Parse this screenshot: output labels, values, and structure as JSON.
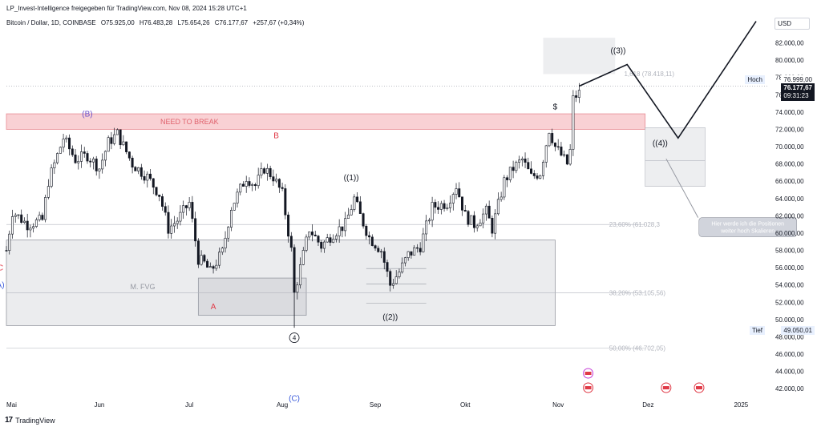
{
  "header": {
    "publisher_line": "LP_Invest-Intelligence freigegeben für TradingView.com, Nov 08, 2024 15:28 UTC+1",
    "symbol_line": "Bitcoin / Dollar, 1D, COINBASE",
    "ohlc": {
      "open": "O75.925,00",
      "high": "H76.483,28",
      "low": "L75.654,26",
      "close": "C76.177,67",
      "change": "+257,67 (+0,34%)"
    }
  },
  "currency": "USD",
  "footer": {
    "brand": "TradingView"
  },
  "price_labels": {
    "hoch_label": "Hoch",
    "hoch_value": "76.999,00",
    "current_value": "76.177,67",
    "countdown": "09:31:23",
    "tief_label": "Tief",
    "tief_value": "49.050,01"
  },
  "colors": {
    "up": "#131722",
    "down": "#131722",
    "resistance_zone": "#f7c5c9",
    "resistance_text": "#e0626d",
    "fvg_zone": "#e6e7ea",
    "wave_red": "#e03a47",
    "wave_blue": "#3b5bdb",
    "wave_purple": "#6a4fc9",
    "projection_line": "#131722",
    "fib_text": "#b2b5be"
  },
  "chart_data": {
    "type": "candlestick",
    "instrument": "Bitcoin / Dollar",
    "timeframe": "1D",
    "exchange": "COINBASE",
    "y_axis": {
      "range": [
        41000,
        84000
      ],
      "ticks": [
        82000,
        80000,
        78000,
        76000,
        74000,
        72000,
        70000,
        68000,
        66000,
        64000,
        62000,
        60000,
        58000,
        56000,
        54000,
        52000,
        50000,
        48000,
        46000,
        44000,
        42000
      ],
      "tick_labels": [
        "82.000,00",
        "80.000,00",
        "78.000,00",
        "76.000,00",
        "74.000,00",
        "72.000,00",
        "70.000,00",
        "68.000,00",
        "66.000,00",
        "64.000,00",
        "62.000,00",
        "60.000,00",
        "58.000,00",
        "56.000,00",
        "54.000,00",
        "52.000,00",
        "50.000,00",
        "48.000,00",
        "46.000,00",
        "44.000,00",
        "42.000,00"
      ]
    },
    "x_axis": {
      "start": "2024-05-01",
      "end": "2025-01-10",
      "ticks": [
        {
          "label": "Mai",
          "date": "2024-05-01"
        },
        {
          "label": "Jun",
          "date": "2024-06-01"
        },
        {
          "label": "Jul",
          "date": "2024-07-01"
        },
        {
          "label": "Aug",
          "date": "2024-08-01"
        },
        {
          "label": "Sep",
          "date": "2024-09-01"
        },
        {
          "label": "Okt",
          "date": "2024-10-01"
        },
        {
          "label": "Nov",
          "date": "2024-11-01"
        },
        {
          "label": "Dez",
          "date": "2024-12-01"
        },
        {
          "label": "2025",
          "date": "2025-01-01"
        }
      ]
    },
    "price_path": [
      [
        "2024-05-01",
        58000
      ],
      [
        "2024-05-03",
        62500
      ],
      [
        "2024-05-08",
        61000
      ],
      [
        "2024-05-13",
        61500
      ],
      [
        "2024-05-15",
        66000
      ],
      [
        "2024-05-20",
        71000
      ],
      [
        "2024-05-24",
        68500
      ],
      [
        "2024-05-28",
        69000
      ],
      [
        "2024-06-01",
        67500
      ],
      [
        "2024-06-04",
        70500
      ],
      [
        "2024-06-07",
        71500
      ],
      [
        "2024-06-12",
        68000
      ],
      [
        "2024-06-17",
        66500
      ],
      [
        "2024-06-21",
        64500
      ],
      [
        "2024-06-24",
        60500
      ],
      [
        "2024-06-27",
        61500
      ],
      [
        "2024-07-01",
        63500
      ],
      [
        "2024-07-04",
        57000
      ],
      [
        "2024-07-06",
        56500
      ],
      [
        "2024-07-08",
        55500
      ],
      [
        "2024-07-12",
        57800
      ],
      [
        "2024-07-15",
        63000
      ],
      [
        "2024-07-20",
        66500
      ],
      [
        "2024-07-23",
        65500
      ],
      [
        "2024-07-26",
        67500
      ],
      [
        "2024-07-29",
        66500
      ],
      [
        "2024-08-01",
        64500
      ],
      [
        "2024-08-04",
        58000
      ],
      [
        "2024-08-05",
        53000
      ],
      [
        "2024-08-07",
        56000
      ],
      [
        "2024-08-10",
        60500
      ],
      [
        "2024-08-14",
        58500
      ],
      [
        "2024-08-18",
        60000
      ],
      [
        "2024-08-22",
        61000
      ],
      [
        "2024-08-25",
        64000
      ],
      [
        "2024-08-27",
        62000
      ],
      [
        "2024-08-30",
        59500
      ],
      [
        "2024-09-03",
        58000
      ],
      [
        "2024-09-06",
        54000
      ],
      [
        "2024-09-09",
        55500
      ],
      [
        "2024-09-12",
        57500
      ],
      [
        "2024-09-16",
        58500
      ],
      [
        "2024-09-20",
        63000
      ],
      [
        "2024-09-25",
        63500
      ],
      [
        "2024-09-28",
        65500
      ],
      [
        "2024-10-01",
        62000
      ],
      [
        "2024-10-04",
        61000
      ],
      [
        "2024-10-08",
        62500
      ],
      [
        "2024-10-10",
        60500
      ],
      [
        "2024-10-14",
        66000
      ],
      [
        "2024-10-17",
        67500
      ],
      [
        "2024-10-20",
        68500
      ],
      [
        "2024-10-23",
        66500
      ],
      [
        "2024-10-26",
        67000
      ],
      [
        "2024-10-29",
        72000
      ],
      [
        "2024-10-31",
        70000
      ],
      [
        "2024-11-04",
        68000
      ],
      [
        "2024-11-05",
        69500
      ],
      [
        "2024-11-06",
        75500
      ],
      [
        "2024-11-07",
        75900
      ],
      [
        "2024-11-08",
        76177.67
      ]
    ],
    "zones": [
      {
        "label": "NEED TO BREAK",
        "from": "2024-05-01",
        "to": "2024-11-30",
        "low": 72000,
        "high": 73800
      },
      {
        "label": "M. FVG",
        "from": "2024-05-01",
        "to": "2024-10-31",
        "low": 49300,
        "high": 59200
      },
      {
        "label": "",
        "from": "2024-07-04",
        "to": "2024-08-09",
        "low": 50500,
        "high": 54800
      }
    ],
    "fibonacci": [
      {
        "label": "1,618 (78.418,11)",
        "value": 78418.11
      },
      {
        "label": "23,60% (61.028,3",
        "value": 61028.3
      },
      {
        "label": "38,20% (53.105,56)",
        "value": 53105.56
      },
      {
        "label": "50,00% (46.702,05)",
        "value": 46702.05
      }
    ],
    "wave_labels": [
      {
        "text": "(B)",
        "date": "2024-05-28",
        "price": 73500,
        "color": "#6a4fc9"
      },
      {
        "text": "B",
        "date": "2024-07-30",
        "price": 71000,
        "color": "#e03a47"
      },
      {
        "text": "C",
        "date": "2024-04-29",
        "price": 55700,
        "color": "#e03a47"
      },
      {
        "text": "A)",
        "date": "2024-04-29",
        "price": 53700,
        "color": "#3b5bdb"
      },
      {
        "text": "A",
        "date": "2024-07-09",
        "price": 51200,
        "color": "#e03a47"
      },
      {
        "text": "(C)",
        "date": "2024-08-05",
        "price": 40600,
        "color": "#3b5bdb"
      },
      {
        "text": "((1))",
        "date": "2024-08-24",
        "price": 66100,
        "color": "#131722"
      },
      {
        "text": "((2))",
        "date": "2024-09-06",
        "price": 50000,
        "color": "#131722"
      },
      {
        "text": "((3))",
        "date": "2024-11-21",
        "price": 80800,
        "color": "#131722"
      },
      {
        "text": "((4))",
        "date": "2024-12-05",
        "price": 70100,
        "color": "#131722"
      },
      {
        "text": "$",
        "date": "2024-10-31",
        "price": 74300,
        "color": "#131722"
      }
    ],
    "projection": [
      [
        "2024-11-08",
        77000
      ],
      [
        "2024-11-24",
        79500
      ],
      [
        "2024-12-11",
        71000
      ],
      [
        "2025-01-06",
        84500
      ]
    ],
    "annotations": [
      {
        "text": "Hier werde ich die Positionen weiter hoch Skalieren",
        "date": "2025-01-02",
        "price": 62000
      }
    ]
  }
}
